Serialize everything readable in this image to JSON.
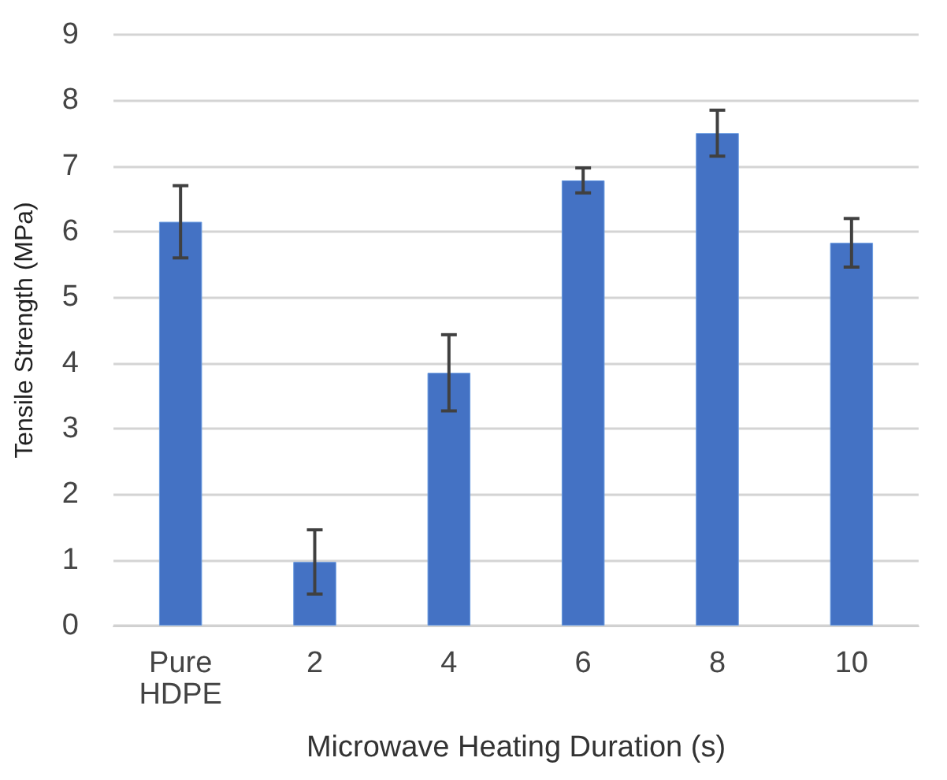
{
  "chart_data": {
    "type": "bar",
    "xlabel": "Microwave Heating Duration (s)",
    "ylabel": "Tensile Strength (MPa)",
    "categories": [
      "Pure\nHDPE",
      "2",
      "4",
      "6",
      "8",
      "10"
    ],
    "values": [
      6.15,
      0.97,
      3.85,
      6.78,
      7.5,
      5.83
    ],
    "errors": [
      0.55,
      0.49,
      0.58,
      0.19,
      0.35,
      0.37
    ],
    "color": "#4472c4",
    "ylim": [
      0,
      9
    ],
    "yticks": [
      0,
      1,
      2,
      3,
      4,
      5,
      6,
      7,
      8,
      9
    ],
    "grid": "y"
  }
}
